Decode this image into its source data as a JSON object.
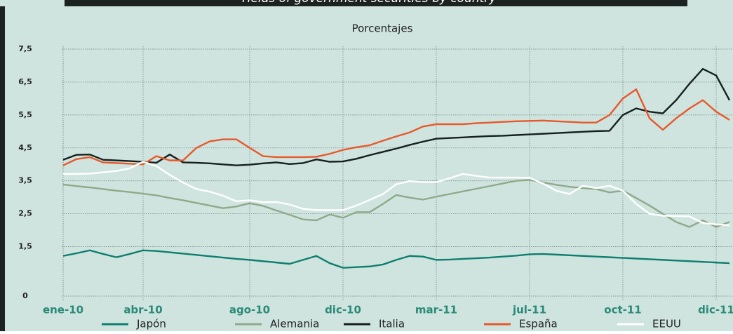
{
  "chart_data": {
    "type": "line",
    "title": "Yields of government securities by country",
    "subtitle": "Porcentajes",
    "categories": [
      "ene-10",
      null,
      null,
      null,
      null,
      null,
      "abr-10",
      null,
      null,
      null,
      null,
      null,
      null,
      null,
      "ago-10",
      null,
      null,
      null,
      null,
      null,
      null,
      "dic-10",
      null,
      null,
      null,
      null,
      null,
      null,
      "mar-11",
      null,
      null,
      null,
      null,
      null,
      null,
      "jul-11",
      null,
      null,
      null,
      null,
      null,
      null,
      "oct-11",
      null,
      null,
      null,
      null,
      null,
      null,
      "dic-11",
      null
    ],
    "ylim": [
      0,
      7.5
    ],
    "yticks": [
      0,
      {
        "value": 1.5,
        "label": "1,5"
      },
      {
        "value": 2.5,
        "label": "2,5"
      },
      {
        "value": 3.5,
        "label": "3,5"
      },
      {
        "value": 4.5,
        "label": "4,5"
      },
      {
        "value": 5.5,
        "label": "5,5"
      },
      {
        "value": 6.5,
        "label": "6,5"
      },
      {
        "value": 7.5,
        "label": "7,5"
      }
    ],
    "grid": true,
    "series": [
      {
        "name": "Japón",
        "color": "#0e7f6e",
        "values": [
          1.22,
          1.3,
          1.39,
          1.28,
          1.18,
          1.28,
          1.39,
          1.37,
          1.33,
          1.29,
          1.25,
          1.21,
          1.17,
          1.13,
          1.1,
          1.06,
          1.02,
          0.98,
          1.1,
          1.22,
          1.0,
          0.86,
          0.88,
          0.9,
          0.96,
          1.1,
          1.22,
          1.2,
          1.1,
          1.11,
          1.13,
          1.15,
          1.17,
          1.2,
          1.23,
          1.27,
          1.28,
          1.26,
          1.24,
          1.22,
          1.2,
          1.18,
          1.16,
          1.14,
          1.12,
          1.1,
          1.08,
          1.06,
          1.04,
          1.02,
          1.0
        ]
      },
      {
        "name": "Alemania",
        "color": "#8fa98a",
        "values": [
          3.39,
          3.34,
          3.3,
          3.25,
          3.2,
          3.16,
          3.11,
          3.06,
          2.98,
          2.91,
          2.83,
          2.75,
          2.67,
          2.72,
          2.82,
          2.74,
          2.6,
          2.47,
          2.33,
          2.3,
          2.48,
          2.38,
          2.55,
          2.55,
          2.8,
          3.07,
          2.99,
          2.93,
          3.02,
          3.1,
          3.18,
          3.26,
          3.34,
          3.42,
          3.5,
          3.53,
          3.45,
          3.38,
          3.32,
          3.28,
          3.25,
          3.15,
          3.2,
          2.98,
          2.75,
          2.5,
          2.25,
          2.1,
          2.3,
          2.1,
          2.25
        ]
      },
      {
        "name": "Italia",
        "color": "#16201e",
        "values": [
          4.14,
          4.29,
          4.3,
          4.14,
          4.12,
          4.1,
          4.08,
          4.05,
          4.3,
          4.06,
          4.05,
          4.03,
          4.0,
          3.97,
          3.99,
          4.03,
          4.06,
          4.01,
          4.04,
          4.15,
          4.08,
          4.09,
          4.17,
          4.28,
          4.38,
          4.48,
          4.59,
          4.69,
          4.78,
          4.8,
          4.82,
          4.84,
          4.86,
          4.87,
          4.89,
          4.91,
          4.93,
          4.95,
          4.97,
          4.99,
          5.01,
          5.02,
          5.5,
          5.7,
          5.6,
          5.55,
          5.95,
          6.45,
          6.9,
          6.7,
          5.95
        ]
      },
      {
        "name": "España",
        "color": "#e8582a",
        "values": [
          3.97,
          4.16,
          4.22,
          4.06,
          4.04,
          4.02,
          4.0,
          4.25,
          4.12,
          4.12,
          4.5,
          4.7,
          4.76,
          4.76,
          4.5,
          4.25,
          4.22,
          4.22,
          4.22,
          4.23,
          4.32,
          4.44,
          4.52,
          4.58,
          4.72,
          4.85,
          4.97,
          5.15,
          5.22,
          5.22,
          5.22,
          5.25,
          5.27,
          5.29,
          5.31,
          5.32,
          5.33,
          5.31,
          5.29,
          5.27,
          5.27,
          5.5,
          6.0,
          6.28,
          5.4,
          5.05,
          5.4,
          5.7,
          5.95,
          5.6,
          5.35
        ]
      },
      {
        "name": "EEUU",
        "color": "#ffffff",
        "values": [
          3.71,
          3.71,
          3.72,
          3.76,
          3.8,
          3.88,
          4.08,
          3.95,
          3.68,
          3.45,
          3.25,
          3.17,
          3.05,
          2.88,
          2.91,
          2.85,
          2.86,
          2.78,
          2.65,
          2.61,
          2.61,
          2.61,
          2.75,
          2.92,
          3.1,
          3.4,
          3.49,
          3.46,
          3.46,
          3.58,
          3.71,
          3.65,
          3.6,
          3.6,
          3.6,
          3.59,
          3.42,
          3.2,
          3.1,
          3.35,
          3.28,
          3.35,
          3.2,
          2.8,
          2.5,
          2.44,
          2.43,
          2.42,
          2.22,
          2.18,
          2.15
        ]
      }
    ]
  }
}
